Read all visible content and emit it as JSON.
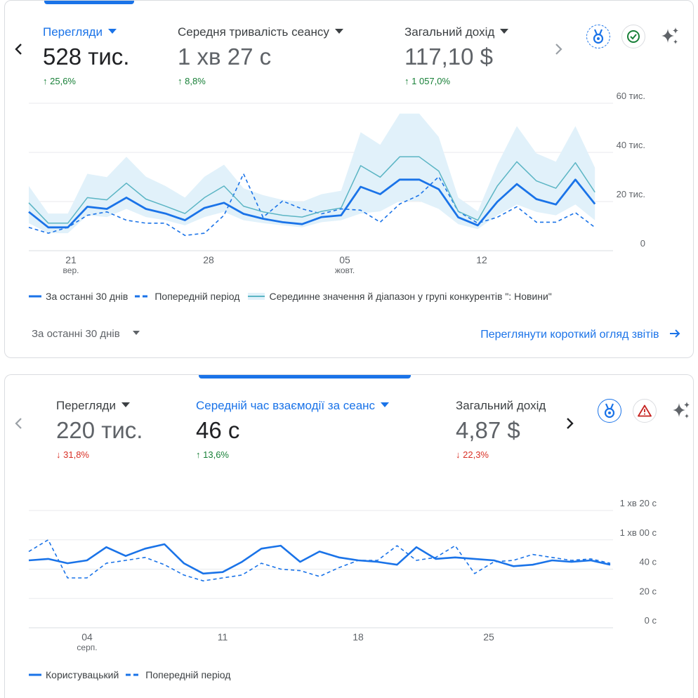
{
  "card1": {
    "metrics": [
      {
        "label": "Перегляди",
        "value": "528 тис.",
        "delta": "25,6%",
        "direction": "up"
      },
      {
        "label": "Середня тривалість сеансу",
        "value": "1 хв 27 с",
        "delta": "8,8%",
        "direction": "up"
      },
      {
        "label": "Загальний дохід",
        "value": "117,10 $",
        "delta": "1 057,0%",
        "direction": "up"
      }
    ],
    "icons": [
      "prev-chevron-icon",
      "next-chevron-icon",
      "badge-icon",
      "check-circle-icon",
      "sparkle-icon"
    ],
    "legend": {
      "current": "За останні 30 днів",
      "previous": "Попередній період",
      "benchmark": "Серединне значення й діапазон у групі конкурентів \": Новини\""
    },
    "date_range": "За останні 30 днів",
    "report_link": "Переглянути короткий огляд звітів"
  },
  "card2": {
    "metrics": [
      {
        "label": "Перегляди",
        "value": "220 тис.",
        "delta": "31,8%",
        "direction": "down"
      },
      {
        "label": "Середній час взаємодії за сеанс",
        "value": "46 с",
        "delta": "13,6%",
        "direction": "up"
      },
      {
        "label": "Загальний дохід",
        "value": "4,87 $",
        "delta": "22,3%",
        "direction": "down"
      }
    ],
    "icons": [
      "prev-chevron-icon",
      "next-chevron-icon",
      "badge-icon",
      "warning-icon",
      "sparkle-icon"
    ],
    "legend": {
      "current": "Користувацький",
      "previous": "Попередній період"
    }
  },
  "chart_data": [
    {
      "type": "line",
      "x_ticks": [
        {
          "label": "21",
          "sub": "вер."
        },
        {
          "label": "28",
          "sub": ""
        },
        {
          "label": "05",
          "sub": "жовт."
        },
        {
          "label": "12",
          "sub": ""
        }
      ],
      "y_ticks": [
        "0",
        "20 тис.",
        "40 тис.",
        "60 тис."
      ],
      "ylim": [
        0,
        60000
      ],
      "grid": true,
      "legend_position": "bottom-left",
      "colors": {
        "current": "#1a73e8",
        "previous": "#1a73e8",
        "benchmark": "#5bb5c4",
        "band": "#e1f1fa"
      },
      "x_start": 19,
      "series": [
        {
          "name": "За останні 30 днів",
          "style": "solid-bold",
          "values": [
            15800,
            9500,
            9500,
            17900,
            17000,
            21600,
            17000,
            15100,
            12400,
            17400,
            19500,
            15000,
            13000,
            11600,
            10800,
            13700,
            14400,
            26000,
            23000,
            28900,
            28900,
            25000,
            13600,
            10300,
            19900,
            27100,
            21000,
            18800,
            28900,
            19000
          ]
        },
        {
          "name": "Попередній період",
          "style": "dashed",
          "values": [
            9500,
            7100,
            9500,
            14400,
            15800,
            12400,
            11200,
            11200,
            6200,
            7100,
            14400,
            31300,
            13600,
            20200,
            17000,
            15000,
            17000,
            16500,
            11600,
            19000,
            22600,
            30100,
            16000,
            11200,
            13600,
            17900,
            11600,
            11600,
            15500,
            9500
          ]
        },
        {
          "name": "Середнє (конкуренти)",
          "style": "solid-thin",
          "values": [
            19500,
            11200,
            11200,
            21600,
            20700,
            27500,
            21000,
            18100,
            15100,
            21600,
            26300,
            18100,
            15800,
            14400,
            13700,
            16000,
            17400,
            34600,
            29900,
            38200,
            38200,
            32400,
            16000,
            12400,
            26300,
            36200,
            28400,
            25400,
            35800,
            23800
          ]
        },
        {
          "name": "Діапазон мін",
          "style": "band-low",
          "values": [
            11200,
            7100,
            7100,
            14400,
            13700,
            17000,
            13700,
            12400,
            10300,
            13700,
            15800,
            12400,
            11200,
            10300,
            9500,
            11600,
            12400,
            15100,
            16000,
            20200,
            20200,
            17000,
            10800,
            8800,
            14400,
            18800,
            15800,
            14400,
            18800,
            12400
          ]
        },
        {
          "name": "Діапазон макс",
          "style": "band-high",
          "values": [
            26300,
            15100,
            15100,
            31300,
            29900,
            38200,
            30100,
            26300,
            21600,
            30100,
            35000,
            25400,
            22600,
            20700,
            19900,
            23000,
            24400,
            48200,
            43100,
            55800,
            55800,
            46300,
            21600,
            16000,
            35000,
            50700,
            39600,
            36200,
            50700,
            33800
          ]
        }
      ]
    },
    {
      "type": "line",
      "x_ticks": [
        {
          "label": "04",
          "sub": "серп."
        },
        {
          "label": "11",
          "sub": ""
        },
        {
          "label": "18",
          "sub": ""
        },
        {
          "label": "25",
          "sub": ""
        }
      ],
      "y_ticks": [
        "0 с",
        "20 с",
        "40 с",
        "1 хв 00 с",
        "1 хв 20 с"
      ],
      "ylim": [
        0,
        80
      ],
      "grid": true,
      "legend_position": "bottom-left",
      "colors": {
        "current": "#1a73e8",
        "previous": "#1a73e8"
      },
      "x_start": 1,
      "series": [
        {
          "name": "Користувацький",
          "style": "solid",
          "values": [
            46,
            47,
            44,
            46,
            55,
            49,
            54,
            57,
            44,
            37,
            38,
            45,
            54,
            56,
            45,
            52,
            48,
            46,
            45,
            43,
            55,
            47,
            48,
            47,
            46,
            42,
            43,
            46,
            45,
            46,
            43
          ]
        },
        {
          "name": "Попередній період",
          "style": "dashed",
          "values": [
            52,
            60,
            34,
            34,
            44,
            46,
            48,
            43,
            36,
            32,
            34,
            36,
            44,
            40,
            39,
            35,
            41,
            46,
            46,
            56,
            46,
            48,
            56,
            37,
            45,
            46,
            50,
            48,
            46,
            47,
            44
          ]
        }
      ]
    }
  ]
}
